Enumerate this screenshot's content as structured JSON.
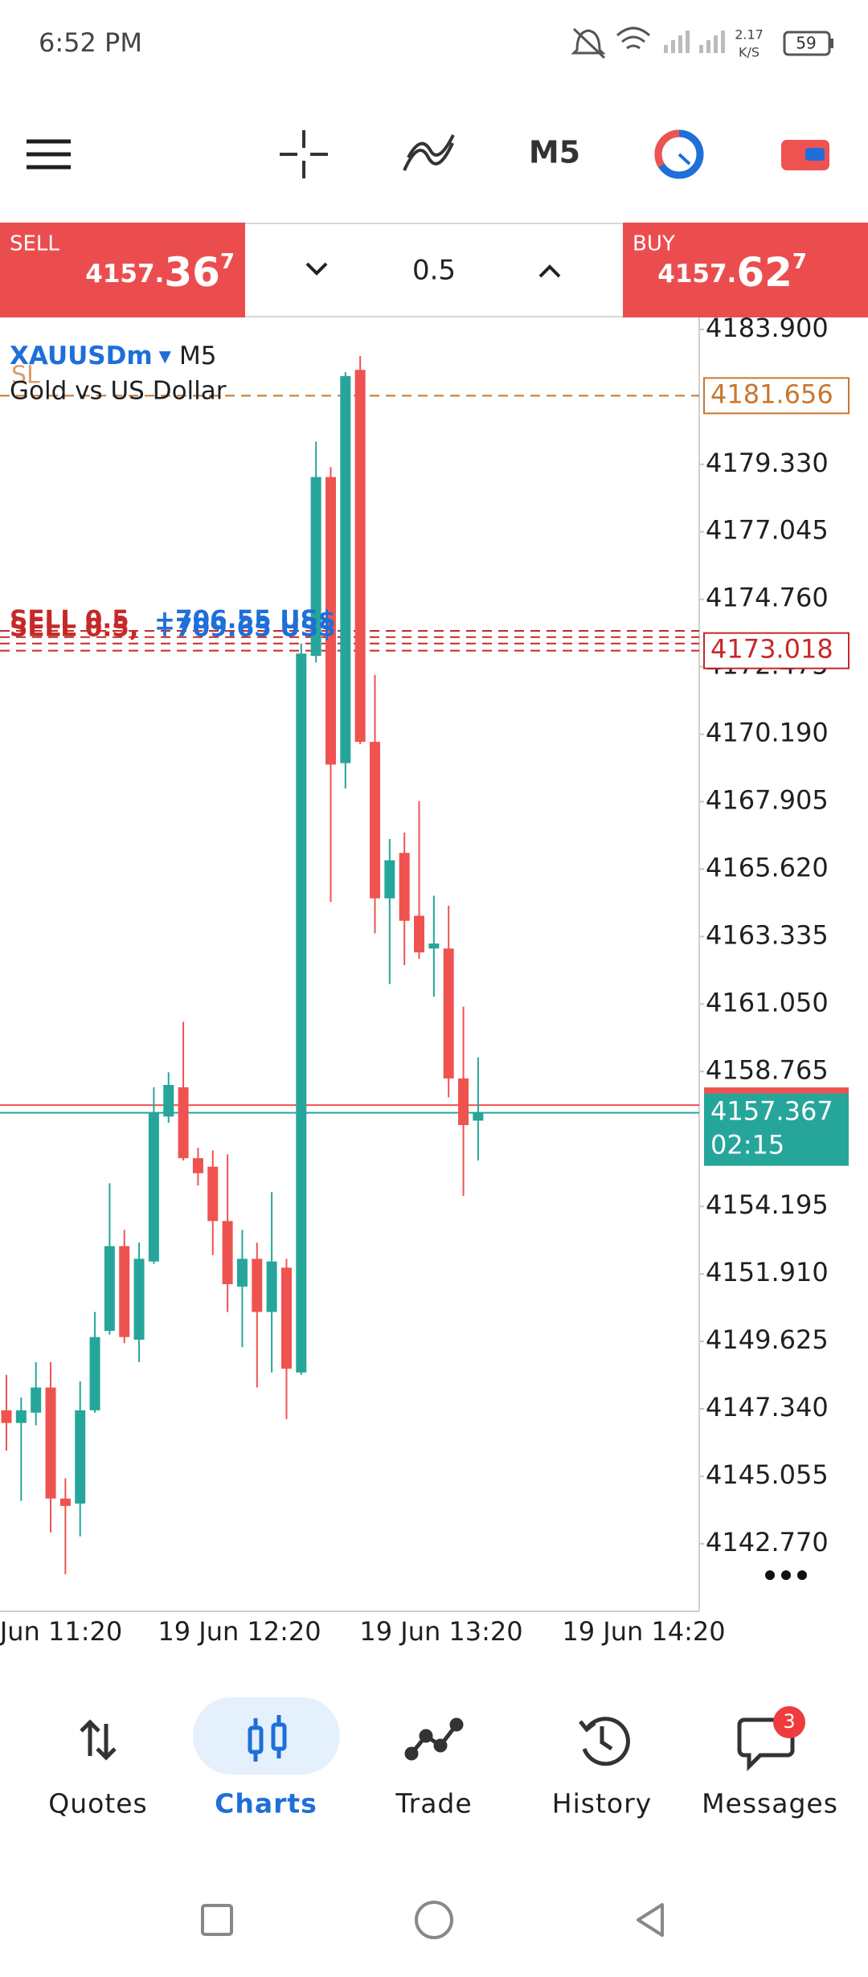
{
  "status_bar": {
    "time": "6:52 PM",
    "speed": "2.17",
    "speed_unit": "K/S",
    "battery": "59"
  },
  "toolbar": {
    "timeframe": "M5"
  },
  "trade_bar": {
    "sell": {
      "label": "SELL",
      "price_head": "4157.",
      "price_big": "36",
      "price_sup": "7"
    },
    "volume": "0.5",
    "buy": {
      "label": "BUY",
      "price_head": "4157.",
      "price_big": "62",
      "price_sup": "7"
    }
  },
  "chart_data": {
    "type": "candlestick",
    "symbol": "XAUUSDm",
    "timeframe": "M5",
    "description": "Gold vs US Dollar",
    "open": [
      4147.29,
      4146.86,
      4147.21,
      4148.06,
      4144.3,
      4144.13,
      4147.29,
      4149.98,
      4152.85,
      4149.68,
      4152.33,
      4157.24,
      4158.23,
      4155.83,
      4155.54,
      4153.7,
      4151.48,
      4152.42,
      4150.62,
      4152.12,
      4148.57,
      4172.84,
      4178.9,
      4169.21,
      4182.53,
      4169.93,
      4164.63,
      4166.17,
      4164.04,
      4162.93,
      4162.93,
      4158.53,
      4157.1
    ],
    "high": [
      4148.49,
      4147.72,
      4148.92,
      4148.92,
      4144.99,
      4148.27,
      4150.62,
      4154.98,
      4153.4,
      4152.97,
      4158.23,
      4158.74,
      4160.45,
      4156.18,
      4156.09,
      4155.96,
      4153.4,
      4152.97,
      4154.68,
      4152.42,
      4173.26,
      4180.1,
      4179.24,
      4182.45,
      4183.0,
      4172.2,
      4166.64,
      4166.86,
      4167.92,
      4164.72,
      4164.38,
      4160.96,
      4159.25
    ],
    "low": [
      4145.92,
      4144.22,
      4146.78,
      4143.15,
      4141.74,
      4143.02,
      4147.21,
      4149.85,
      4149.56,
      4148.92,
      4152.25,
      4157.03,
      4155.75,
      4154.9,
      4152.55,
      4150.62,
      4149.43,
      4148.06,
      4148.57,
      4146.99,
      4148.49,
      4172.62,
      4164.51,
      4168.35,
      4169.85,
      4163.44,
      4161.73,
      4162.37,
      4162.58,
      4161.3,
      4157.89,
      4154.55,
      4155.75
    ],
    "close": [
      4146.86,
      4147.29,
      4148.06,
      4144.3,
      4144.05,
      4147.29,
      4149.77,
      4152.85,
      4149.77,
      4152.42,
      4157.37,
      4158.31,
      4155.83,
      4155.32,
      4153.7,
      4151.56,
      4152.42,
      4150.62,
      4152.33,
      4148.7,
      4172.92,
      4178.9,
      4169.16,
      4182.32,
      4169.93,
      4164.63,
      4165.92,
      4163.87,
      4162.8,
      4163.1,
      4158.53,
      4156.95,
      4157.367
    ],
    "up_color": "#26a69a",
    "down_color": "#ef5350",
    "ylim": [
      4140.48,
      4184.17
    ],
    "yticks": [
      {
        "value": 4183.9,
        "label": "4183.900"
      },
      {
        "value": 4179.33,
        "label": "4179.330"
      },
      {
        "value": 4177.045,
        "label": "4177.045"
      },
      {
        "value": 4174.76,
        "label": "4174.760"
      },
      {
        "value": 4172.475,
        "label": "4172.475"
      },
      {
        "value": 4170.19,
        "label": "4170.190"
      },
      {
        "value": 4167.905,
        "label": "4167.905"
      },
      {
        "value": 4165.62,
        "label": "4165.620"
      },
      {
        "value": 4163.335,
        "label": "4163.335"
      },
      {
        "value": 4161.05,
        "label": "4161.050"
      },
      {
        "value": 4158.765,
        "label": "4158.765"
      },
      {
        "value": 4154.195,
        "label": "4154.195"
      },
      {
        "value": 4151.91,
        "label": "4151.910"
      },
      {
        "value": 4149.625,
        "label": "4149.625"
      },
      {
        "value": 4147.34,
        "label": "4147.340"
      },
      {
        "value": 4145.055,
        "label": "4145.055"
      },
      {
        "value": 4142.77,
        "label": "4142.770"
      }
    ],
    "time_labels": [
      "Jun 11:20",
      "19 Jun 12:20",
      "19 Jun 13:20",
      "19 Jun 14:20"
    ],
    "sl_line": {
      "label": "SL",
      "value": 4181.656,
      "color": "#c8762f"
    },
    "position_lines": {
      "values": [
        4173.69,
        4173.48,
        4173.26,
        4173.018
      ],
      "color": "#c62828",
      "labels": [
        {
          "side": "SELL 0.5",
          "profit": "+706.55 US$"
        },
        {
          "side": "SELL 0.5,",
          "profit": "+709.65 US$"
        }
      ]
    },
    "ask_line": {
      "value": 4157.627,
      "color": "#ef5350"
    },
    "bid_line": {
      "value": 4157.367,
      "timer": "02:15",
      "color": "#26a69a"
    }
  },
  "bottom_nav": {
    "items": [
      {
        "label": "Quotes"
      },
      {
        "label": "Charts"
      },
      {
        "label": "Trade"
      },
      {
        "label": "History"
      },
      {
        "label": "Messages"
      }
    ],
    "badge": "3"
  }
}
